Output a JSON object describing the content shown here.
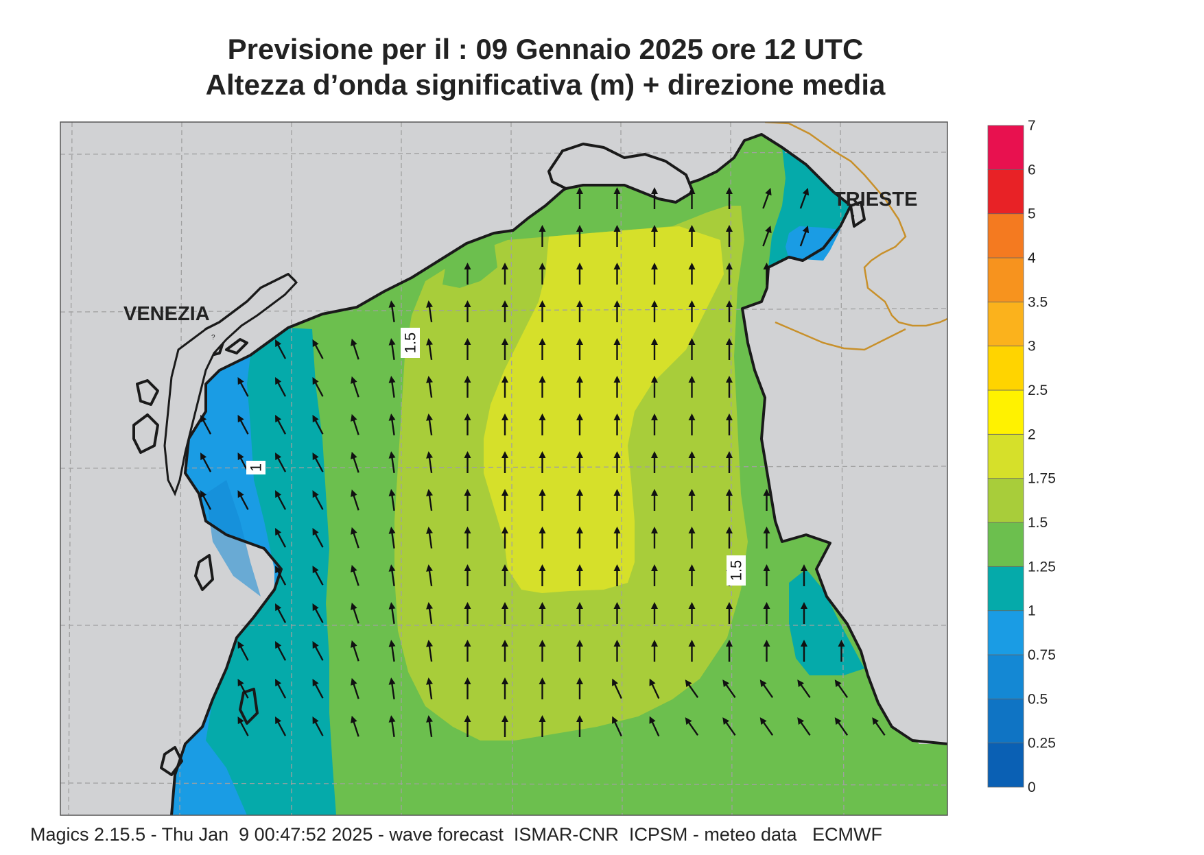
{
  "title": {
    "line1": "Previsione per il  :  09  Gennaio  2025   ore 12 UTC",
    "line2": "Altezza d’onda significativa (m) + direzione media"
  },
  "places": {
    "venezia": "VENEZIA",
    "trieste": "TRIESTE"
  },
  "contour_labels": [
    "1.5",
    "1",
    "1.5"
  ],
  "colorbar": {
    "levels": [
      {
        "label": "0",
        "color": "#0a60b4"
      },
      {
        "label": "0.25",
        "color": "#0f74c4"
      },
      {
        "label": "0.5",
        "color": "#1488d4"
      },
      {
        "label": "0.75",
        "color": "#1a9ce4"
      },
      {
        "label": "1",
        "color": "#05aaaa"
      },
      {
        "label": "1.25",
        "color": "#6cbf4e"
      },
      {
        "label": "1.5",
        "color": "#a8cd3a"
      },
      {
        "label": "1.75",
        "color": "#d6e02a"
      },
      {
        "label": "2",
        "color": "#fff200"
      },
      {
        "label": "2.5",
        "color": "#ffd400"
      },
      {
        "label": "3",
        "color": "#fbb21c"
      },
      {
        "label": "3.5",
        "color": "#f7931e"
      },
      {
        "label": "4",
        "color": "#f47a20"
      },
      {
        "label": "5",
        "color": "#e82226"
      },
      {
        "label": "6",
        "color": "#e8114f"
      },
      {
        "label": "7",
        "color": ""
      }
    ]
  },
  "colors": {
    "land": "#d1d2d4",
    "coast": "#1a1a1a",
    "border": "#c8902a",
    "grid": "#a0a0a0",
    "arrow": "#111111"
  },
  "footer": "Magics 2.15.5 - Thu Jan  9 00:47:52 2025 - wave forecast  ISMAR-CNR  ICPSM - meteo data   ECMWF"
}
